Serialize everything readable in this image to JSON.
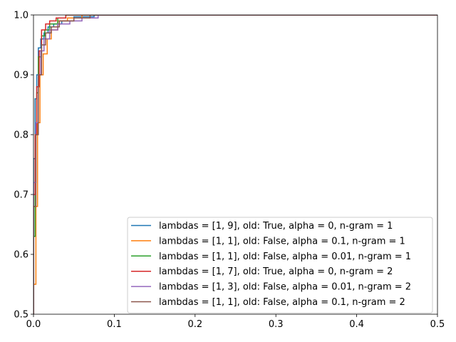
{
  "chart_data": {
    "type": "line",
    "title": "",
    "xlabel": "",
    "ylabel": "",
    "xlim": [
      0,
      0.5
    ],
    "ylim": [
      0.5,
      1.0
    ],
    "xticks": [
      "0.0",
      "0.1",
      "0.2",
      "0.3",
      "0.4",
      "0.5"
    ],
    "yticks": [
      "0.5",
      "0.6",
      "0.7",
      "0.8",
      "0.9",
      "1.0"
    ],
    "grid": false,
    "legend_position": "lower-right",
    "step": true,
    "series": [
      {
        "name": "lambdas = [1, 9], old: True, alpha = 0, n-gram = 1",
        "color": "#1f77b4",
        "x": [
          0.0,
          0.0,
          0.002,
          0.002,
          0.004,
          0.004,
          0.006,
          0.006,
          0.009,
          0.009,
          0.013,
          0.013,
          0.018,
          0.018,
          0.025,
          0.025,
          0.035,
          0.035,
          0.05,
          0.05,
          0.075,
          0.075,
          0.5
        ],
        "y": [
          0.5,
          0.76,
          0.76,
          0.86,
          0.86,
          0.9,
          0.9,
          0.945,
          0.945,
          0.96,
          0.96,
          0.97,
          0.97,
          0.98,
          0.98,
          0.985,
          0.985,
          0.99,
          0.99,
          0.997,
          0.997,
          1.0,
          1.0
        ]
      },
      {
        "name": "lambdas = [1, 1], old: False, alpha = 0.1, n-gram = 1",
        "color": "#ff7f0e",
        "x": [
          0.0,
          0.0,
          0.003,
          0.003,
          0.005,
          0.005,
          0.008,
          0.008,
          0.012,
          0.012,
          0.017,
          0.017,
          0.022,
          0.022,
          0.03,
          0.03,
          0.042,
          0.042,
          0.06,
          0.06,
          0.5
        ],
        "y": [
          0.5,
          0.55,
          0.55,
          0.68,
          0.68,
          0.82,
          0.82,
          0.9,
          0.9,
          0.935,
          0.935,
          0.96,
          0.96,
          0.975,
          0.975,
          0.99,
          0.99,
          0.995,
          0.995,
          1.0,
          1.0
        ]
      },
      {
        "name": "lambdas = [1, 1], old: False, alpha = 0.01, n-gram = 1",
        "color": "#2ca02c",
        "x": [
          0.0,
          0.0,
          0.002,
          0.002,
          0.004,
          0.004,
          0.006,
          0.006,
          0.01,
          0.01,
          0.014,
          0.014,
          0.02,
          0.02,
          0.03,
          0.03,
          0.04,
          0.04,
          0.5
        ],
        "y": [
          0.5,
          0.63,
          0.63,
          0.8,
          0.8,
          0.87,
          0.87,
          0.93,
          0.93,
          0.965,
          0.965,
          0.975,
          0.975,
          0.985,
          0.985,
          0.995,
          0.995,
          1.0,
          1.0
        ]
      },
      {
        "name": "lambdas = [1, 7], old: True, alpha = 0, n-gram = 2",
        "color": "#d62728",
        "x": [
          0.0,
          0.0,
          0.002,
          0.002,
          0.004,
          0.004,
          0.007,
          0.007,
          0.01,
          0.01,
          0.015,
          0.015,
          0.02,
          0.02,
          0.028,
          0.028,
          0.04,
          0.04,
          0.5
        ],
        "y": [
          0.5,
          0.7,
          0.7,
          0.8,
          0.8,
          0.88,
          0.88,
          0.94,
          0.94,
          0.975,
          0.975,
          0.985,
          0.985,
          0.99,
          0.99,
          0.995,
          0.995,
          1.0,
          1.0
        ]
      },
      {
        "name": "lambdas = [1, 3], old: False, alpha = 0.01, n-gram = 2",
        "color": "#9467bd",
        "x": [
          0.0,
          0.0,
          0.003,
          0.003,
          0.006,
          0.006,
          0.009,
          0.009,
          0.013,
          0.013,
          0.02,
          0.02,
          0.03,
          0.03,
          0.045,
          0.045,
          0.06,
          0.06,
          0.08,
          0.08,
          0.5
        ],
        "y": [
          0.5,
          0.72,
          0.72,
          0.82,
          0.82,
          0.9,
          0.9,
          0.94,
          0.94,
          0.96,
          0.96,
          0.975,
          0.975,
          0.985,
          0.985,
          0.99,
          0.99,
          0.995,
          0.995,
          1.0,
          1.0
        ]
      },
      {
        "name": "lambdas = [1, 1], old: False, alpha = 0.1, n-gram = 2",
        "color": "#8c564b",
        "x": [
          0.0,
          0.0,
          0.003,
          0.003,
          0.006,
          0.006,
          0.01,
          0.01,
          0.015,
          0.015,
          0.022,
          0.022,
          0.032,
          0.032,
          0.05,
          0.05,
          0.07,
          0.07,
          0.5
        ],
        "y": [
          0.5,
          0.68,
          0.68,
          0.8,
          0.8,
          0.9,
          0.9,
          0.95,
          0.95,
          0.97,
          0.97,
          0.98,
          0.98,
          0.99,
          0.99,
          0.995,
          0.995,
          1.0,
          1.0
        ]
      }
    ]
  }
}
